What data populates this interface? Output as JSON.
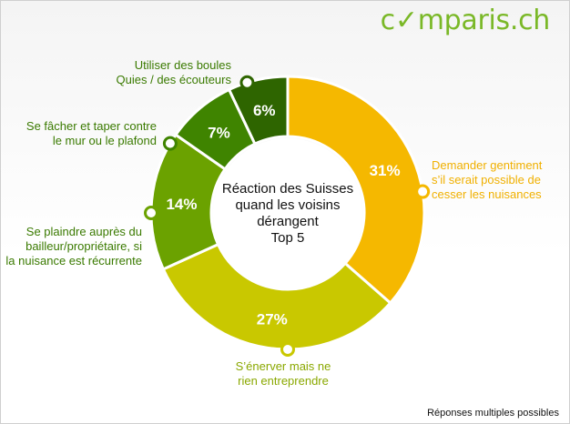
{
  "brand": {
    "prefix": "c",
    "middle": "mparis.ch"
  },
  "footnote": "Réponses multiples possibles",
  "chart_data": {
    "type": "pie",
    "donut": true,
    "center_title": [
      "Réaction des Suisses",
      "quand les voisins",
      "dérangent",
      "Top 5"
    ],
    "slices": [
      {
        "label": "Demander gentiment s'il serait possible de cesser les nuisances",
        "value": 31,
        "display": "31%",
        "color": "#f5b800"
      },
      {
        "label": "S'énerver mais ne rien entreprendre",
        "value": 27,
        "display": "27%",
        "color": "#c9c800"
      },
      {
        "label": "Se plaindre auprès du bailleur/propriétaire, si la nuisance est récurrente",
        "value": 14,
        "display": "14%",
        "color": "#6ba200"
      },
      {
        "label": "Se fâcher et taper contre le mur ou le plafond",
        "value": 7,
        "display": "7%",
        "color": "#3f8400"
      },
      {
        "label": "Utiliser des boules Quies / des écouteurs",
        "value": 6,
        "display": "6%",
        "color": "#2e6500"
      }
    ],
    "callouts": [
      {
        "lines": [
          "Demander gentiment",
          "s’il serait possible de",
          "cesser les nuisances"
        ]
      },
      {
        "lines": [
          "S’énerver mais ne",
          "rien entreprendre"
        ]
      },
      {
        "lines": [
          "Se plaindre auprès du",
          "bailleur/propriétaire, si",
          "la nuisance est récurrente"
        ]
      },
      {
        "lines": [
          "Se fâcher et taper contre",
          "le mur ou le plafond"
        ]
      },
      {
        "lines": [
          "Utiliser des boules",
          "Quies / des écouteurs"
        ]
      }
    ]
  }
}
